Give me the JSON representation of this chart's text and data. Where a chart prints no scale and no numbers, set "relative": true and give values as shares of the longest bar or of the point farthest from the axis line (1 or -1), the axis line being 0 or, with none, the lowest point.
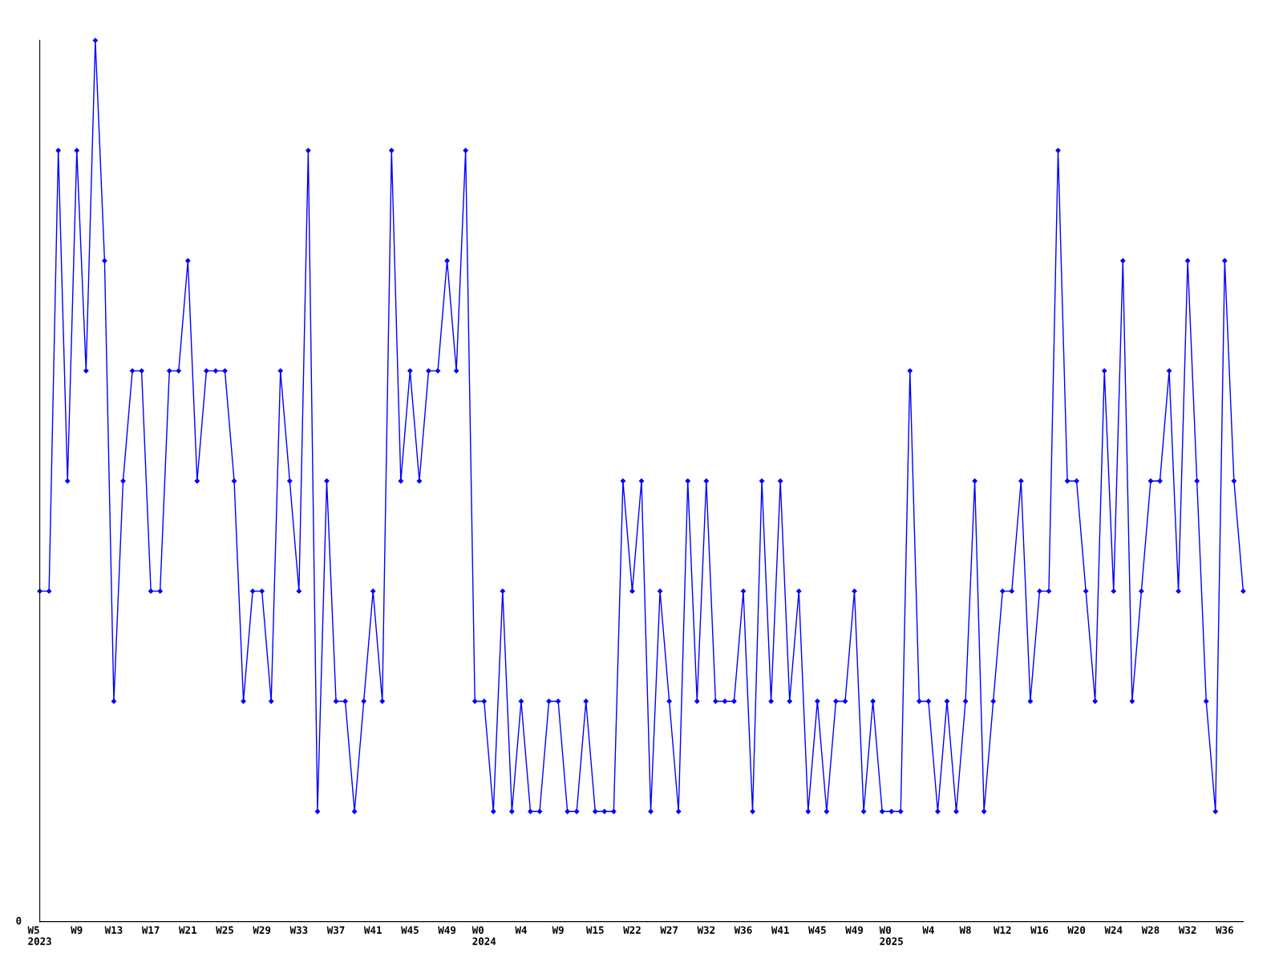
{
  "chart_data": {
    "type": "line",
    "relative": true,
    "color": "#0000ff",
    "marker": "diamond",
    "line_style": "solid",
    "grid": false,
    "legend": false,
    "annotations": [
      "0"
    ],
    "categories": [
      "W5\n2023",
      null,
      null,
      null,
      "W9",
      null,
      null,
      null,
      "W13",
      null,
      null,
      null,
      "W17",
      null,
      null,
      null,
      "W21",
      null,
      null,
      null,
      "W25",
      null,
      null,
      null,
      "W29",
      null,
      null,
      null,
      "W33",
      null,
      null,
      null,
      "W37",
      null,
      null,
      null,
      "W41",
      null,
      null,
      null,
      "W45",
      null,
      null,
      null,
      "W49",
      null,
      null,
      null,
      "W0\n2024",
      null,
      null,
      null,
      "W4",
      null,
      null,
      null,
      "W9",
      null,
      null,
      null,
      "W15",
      null,
      null,
      null,
      "W22",
      null,
      null,
      null,
      "W27",
      null,
      null,
      null,
      "W32",
      null,
      null,
      null,
      "W36",
      null,
      null,
      null,
      "W41",
      null,
      null,
      null,
      "W45",
      null,
      null,
      null,
      "W49",
      null,
      null,
      null,
      "W0\n2025",
      null,
      null,
      null,
      "W4",
      null,
      null,
      null,
      "W8",
      null,
      null,
      null,
      "W12",
      null,
      null,
      null,
      "W16",
      null,
      null,
      null,
      "W20",
      null,
      null,
      null,
      "W24",
      null,
      null,
      null,
      "W28",
      null,
      null,
      null,
      "W32",
      null,
      null,
      null,
      "W36",
      null,
      null
    ],
    "values": [
      0.375,
      0.375,
      0.875,
      0.5,
      0.875,
      0.625,
      1,
      0.75,
      0.25,
      0.5,
      0.625,
      0.625,
      0.375,
      0.375,
      0.625,
      0.625,
      0.75,
      0.5,
      0.625,
      0.625,
      0.625,
      0.5,
      0.25,
      0.375,
      0.375,
      0.25,
      0.625,
      0.5,
      0.375,
      0.875,
      0.125,
      0.5,
      0.25,
      0.25,
      0.125,
      0.25,
      0.375,
      0.25,
      0.875,
      0.5,
      0.625,
      0.5,
      0.625,
      0.625,
      0.75,
      0.625,
      0.875,
      0.25,
      0.25,
      0.125,
      0.375,
      0.125,
      0.25,
      0.125,
      0.125,
      0.25,
      0.25,
      0.125,
      0.125,
      0.25,
      0.125,
      0.125,
      0.125,
      0.5,
      0.375,
      0.5,
      0.125,
      0.375,
      0.25,
      0.125,
      0.5,
      0.25,
      0.5,
      0.25,
      0.25,
      0.25,
      0.375,
      0.125,
      0.5,
      0.25,
      0.5,
      0.25,
      0.375,
      0.125,
      0.25,
      0.125,
      0.25,
      0.25,
      0.375,
      0.125,
      0.25,
      0.125,
      0.125,
      0.125,
      0.625,
      0.25,
      0.25,
      0.125,
      0.25,
      0.125,
      0.25,
      0.5,
      0.125,
      0.25,
      0.375,
      0.375,
      0.5,
      0.25,
      0.375,
      0.375,
      0.875,
      0.5,
      0.5,
      0.375,
      0.25,
      0.625,
      0.375,
      0.75,
      0.25,
      0.375,
      0.5,
      0.5,
      0.625,
      0.375,
      0.75,
      0.5,
      0.25,
      0.125,
      0.75,
      0.5,
      0.375
    ]
  }
}
